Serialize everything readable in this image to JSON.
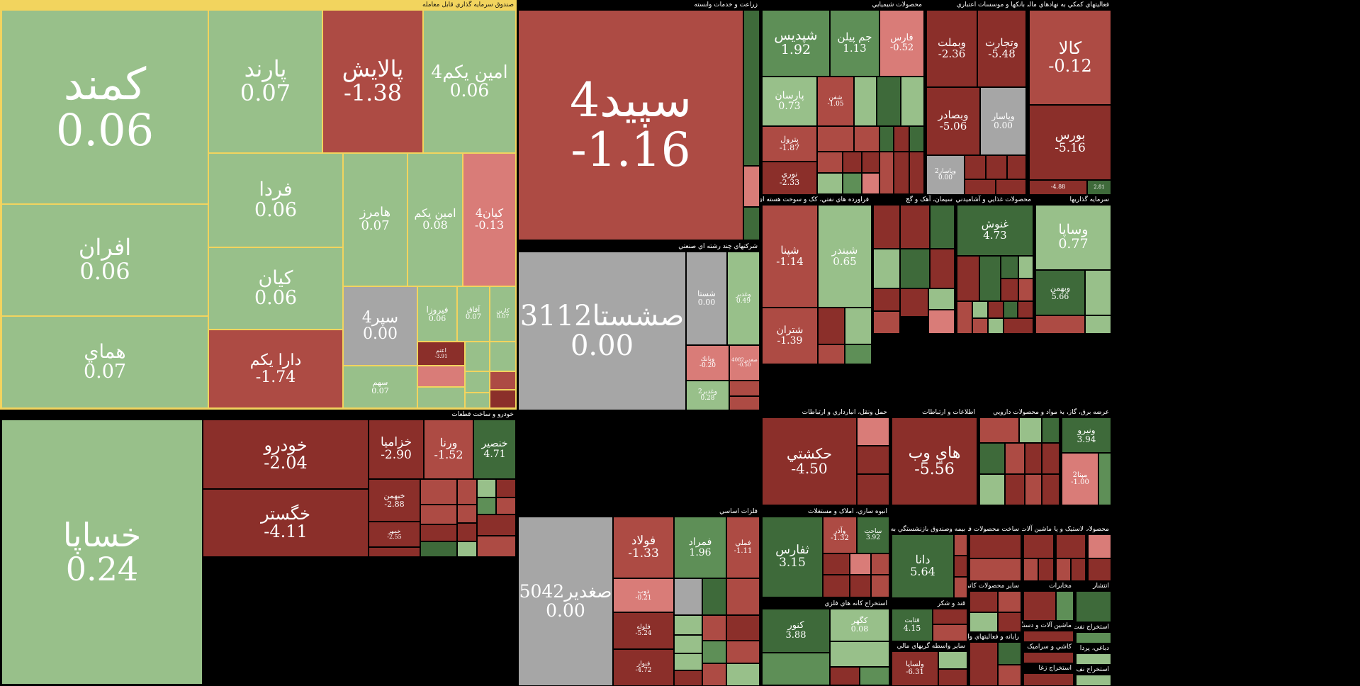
{
  "colors": {
    "light_green": "#98c08a",
    "mid_green": "#5e8f57",
    "dark_green": "#3e6a3a",
    "light_red": "#d97c78",
    "mid_red": "#ad4b44",
    "dark_red": "#8b2f2a",
    "neutral": "#a6a6a6",
    "fund_border": "#f2d45e"
  },
  "sectors": {
    "etf": "صندوق سرمايه گذاري قابل معامله",
    "auto": "خودرو و ساخت قطعات",
    "agri": "زراعت و خدمات وابسته",
    "multi": "شرکتهاي چند رشته اي صنعتي",
    "metals": "فلزات اساسي",
    "chem": "محصولات شيميايي",
    "banks": "بانکها و موسسات اعتباري",
    "fin": "فعاليتهاي کمکي به نهادهاي مالي واسط",
    "oil": "فراورده هاي نفتي، کک و سوخت هسته اي",
    "cement": "سيمان، آهک و گچ",
    "food": "محصولات غذايي و آشاميدني به جز",
    "invest": "سرمايه گذاريها",
    "transport": "حمل ونقل، انبارداري و ارتباطات",
    "it": "اطلاعات و ارتباطات",
    "pharma": "مواد و محصولات دارويي",
    "utility": "عرضه برق، گاز، بخارآ",
    "realestate": "انبوه سازي، املاک و مستغلات",
    "insurance": "بيمه وصندوق بازنشستگي به جزتامين",
    "fabmetal": "ساخت محصولات فلزي",
    "machinery": "ماشين آلات و",
    "rubber": "لاستيک و پلا",
    "misc": "محصولات",
    "mining": "استخراج کانه هاي فلزي",
    "sugar": "قند و شکر",
    "otherfin": "ساير واسطه گريهاي مالي",
    "othermin": "ساير محصولات کاني غ",
    "telecom": "مخابرات",
    "elec": "ماشين آلات و دستگاه",
    "comp": "رايانه و فعاليتهاي وابس",
    "tile": "کاشي و سراميک",
    "publish": "انتشار",
    "extract": "استخراج نفت گ",
    "tobacco": "دباغي، پردا",
    "coal": "استخراج زغا",
    "other": "استخراج نف"
  },
  "tiles": {
    "kamand": {
      "name": "کمند",
      "pct": "0.06"
    },
    "parand": {
      "name": "پارند",
      "pct": "0.07"
    },
    "palayesh": {
      "name": "پالايش",
      "pct": "-1.38"
    },
    "aminyekom4": {
      "name": "امين يكم4",
      "pct": "0.06"
    },
    "farda": {
      "name": "فردا",
      "pct": "0.06"
    },
    "hamarz": {
      "name": "هامرز",
      "pct": "0.07"
    },
    "aminyekom": {
      "name": "امين يكم",
      "pct": "0.08"
    },
    "kian4": {
      "name": "كيان4",
      "pct": "-0.13"
    },
    "afran": {
      "name": "افران",
      "pct": "0.06"
    },
    "kian": {
      "name": "كيان",
      "pct": "0.06"
    },
    "separ4": {
      "name": "سپر4",
      "pct": "0.00"
    },
    "firooza": {
      "name": "فيروزا",
      "pct": "0.06"
    },
    "afagh": {
      "name": "آفاق",
      "pct": "0.07"
    },
    "karin": {
      "name": "كارين",
      "pct": "0.07"
    },
    "homay": {
      "name": "هماي",
      "pct": "0.07"
    },
    "darayekom": {
      "name": "دارا يكم",
      "pct": "-1.74"
    },
    "sahm": {
      "name": "سهم",
      "pct": "0.07"
    },
    "aem": {
      "name": "اعتم",
      "pct": "-3.91"
    },
    "khasapa": {
      "name": "خساپا",
      "pct": "0.24"
    },
    "khodro": {
      "name": "خودرو",
      "pct": "-2.04"
    },
    "khazamia": {
      "name": "خزاميا",
      "pct": "-2.90"
    },
    "verna": {
      "name": "ورنا",
      "pct": "-1.52"
    },
    "khanser": {
      "name": "خنصير",
      "pct": "4.71"
    },
    "khgostar": {
      "name": "خگستر",
      "pct": "-4.11"
    },
    "khbahman": {
      "name": "خبهمن",
      "pct": "-2.88"
    },
    "khmehr": {
      "name": "خمهر",
      "pct": "-2.55"
    },
    "sepid4": {
      "name": "سپيد4",
      "pct": "-1.16"
    },
    "sesh": {
      "name": "صشستا3112",
      "pct": "0.00"
    },
    "shasta": {
      "name": "شستا",
      "pct": "0.00"
    },
    "vaghadir": {
      "name": "وغدير",
      "pct": "0.49"
    },
    "vbank": {
      "name": "وبانك",
      "pct": "-0.20"
    },
    "saghadir4082": {
      "name": "صغدير4082",
      "pct": "-0.50"
    },
    "vaghadir2": {
      "name": "وغدير2",
      "pct": "0.28"
    },
    "saghadir5042": {
      "name": "صغدير5042",
      "pct": "0.00"
    },
    "foolad": {
      "name": "فولاد",
      "pct": "-1.33"
    },
    "fameli": {
      "name": "فملي",
      "pct": "-1.11"
    },
    "fameraz": {
      "name": "فمراد",
      "pct": "1.96"
    },
    "zob": {
      "name": "ذوب",
      "pct": "-0.21"
    },
    "folaj": {
      "name": "فلوله",
      "pct": "-5.24"
    },
    "fanvar": {
      "name": "فنوار",
      "pct": "-4.72"
    },
    "shepdis": {
      "name": "شپديس",
      "pct": "1.92"
    },
    "jampilan": {
      "name": "جم پيلن",
      "pct": "1.13"
    },
    "fars": {
      "name": "فارس",
      "pct": "-0.52"
    },
    "parsan": {
      "name": "پارسان",
      "pct": "0.73"
    },
    "shafan": {
      "name": "شفن",
      "pct": "-1.05"
    },
    "petrol": {
      "name": "پترول",
      "pct": "-1.87"
    },
    "noori": {
      "name": "نوري",
      "pct": "-2.33"
    },
    "vbmellat": {
      "name": "وبملت",
      "pct": "-2.36"
    },
    "vtejarat": {
      "name": "وتجارت",
      "pct": "-5.48"
    },
    "vbsader": {
      "name": "وبصادر",
      "pct": "-5.06"
    },
    "vbsaderpasar": {
      "name": "وپاسار",
      "pct": "0.00"
    },
    "vpasar2": {
      "name": "وپاسار2",
      "pct": "0.00"
    },
    "kala": {
      "name": "کالا",
      "pct": "-0.12"
    },
    "boors": {
      "name": "بورس",
      "pct": "-5.16"
    },
    "energy3": {
      "name": "انرژي3",
      "pct": "-4.88"
    },
    "amin": {
      "name": "امين",
      "pct": "2.81"
    },
    "shepna": {
      "name": "شپنا",
      "pct": "-1.14"
    },
    "shebandar": {
      "name": "شبندر",
      "pct": "0.65"
    },
    "shetran": {
      "name": "شتران",
      "pct": "-1.39"
    },
    "ghonosh": {
      "name": "غنوش",
      "pct": "4.73"
    },
    "vasapa": {
      "name": "وساپا",
      "pct": "0.77"
    },
    "vbahman": {
      "name": "وبهمن",
      "pct": "5.66"
    },
    "hakashti": {
      "name": "حكشتي",
      "pct": "-4.50"
    },
    "hajweb": {
      "name": "هاي وب",
      "pct": "-5.56"
    },
    "vnirou": {
      "name": "ونيرو",
      "pct": "3.94"
    },
    "mapna2": {
      "name": "مپنا2",
      "pct": "-1.00"
    },
    "sfars": {
      "name": "ثفارس",
      "pct": "3.15"
    },
    "vazar": {
      "name": "وآذر",
      "pct": "-1.32"
    },
    "dana": {
      "name": "دانا",
      "pct": "5.64"
    },
    "kenvar": {
      "name": "كنور",
      "pct": "3.88"
    },
    "kgohar": {
      "name": "كگهر",
      "pct": "0.08"
    },
    "ghetat": {
      "name": "قثابت",
      "pct": "4.15"
    },
    "vlsapa": {
      "name": "ولساپا",
      "pct": "-6.31"
    },
    "sashisb": {
      "name": "ساحت",
      "pct": "3.92"
    }
  }
}
